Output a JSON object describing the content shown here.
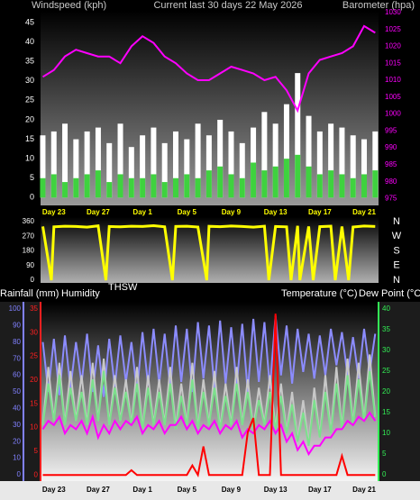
{
  "chart_data": [
    {
      "type": "combo",
      "title": "Current last 30 days 22 May 2026",
      "y_label": "Windspeed (kph)",
      "y2_label": "Barometer (hpa)",
      "x": [
        -1,
        0,
        1,
        2,
        3,
        4,
        5,
        6,
        7,
        8,
        9,
        10,
        11,
        12,
        13,
        14,
        15,
        16,
        17,
        18,
        19,
        20,
        21,
        22,
        23,
        24,
        25,
        26,
        27,
        28,
        29
      ],
      "xlim": [
        -1.2,
        29.3
      ],
      "xticks": [
        {
          "value": 0,
          "label": "Day 23"
        },
        {
          "value": 4,
          "label": "Day 27"
        },
        {
          "value": 8,
          "label": "Day 1"
        },
        {
          "value": 12,
          "label": "Day 5"
        },
        {
          "value": 16,
          "label": "Day 9"
        },
        {
          "value": 20,
          "label": "Day 13"
        },
        {
          "value": 24,
          "label": "Day 17"
        },
        {
          "value": 28,
          "label": "Day 21"
        }
      ],
      "ylim": [
        -2,
        48
      ],
      "yticks": [
        0,
        5,
        10,
        15,
        20,
        25,
        30,
        35,
        40,
        45
      ],
      "y2lim": [
        973,
        1030.5
      ],
      "y2ticks": [
        975,
        980,
        985,
        990,
        995,
        1000,
        1005,
        1010,
        1015,
        1020,
        1025,
        1030
      ],
      "series": [
        {
          "style": "bar",
          "color": "#ffffff",
          "values": [
            16,
            17,
            19,
            15,
            17,
            18,
            14,
            19,
            13,
            16,
            18,
            14,
            17,
            15,
            19,
            16,
            20,
            17,
            14,
            18,
            22,
            19,
            24,
            32,
            21,
            17,
            19,
            18,
            16,
            15,
            17
          ]
        },
        {
          "style": "bar",
          "color": "#3fd23f",
          "values": [
            5,
            6,
            4,
            5,
            6,
            7,
            4,
            6,
            5,
            5,
            6,
            4,
            5,
            6,
            5,
            7,
            8,
            6,
            5,
            9,
            7,
            8,
            10,
            11,
            8,
            6,
            7,
            6,
            5,
            6,
            7
          ]
        },
        {
          "style": "line",
          "axis": "y2",
          "color": "#ff00ff",
          "values": [
            1011,
            1013,
            1017,
            1019,
            1018,
            1017,
            1017,
            1015,
            1020,
            1023,
            1021,
            1017,
            1015,
            1012,
            1010,
            1010,
            1012,
            1014,
            1013,
            1012,
            1010,
            1011,
            1007,
            1001,
            1012,
            1016,
            1017,
            1018,
            1020,
            1026,
            1024
          ]
        }
      ]
    },
    {
      "type": "direction",
      "x": [
        -1,
        -0.22,
        0,
        1,
        2,
        3,
        4,
        4.7,
        5,
        6,
        7,
        8,
        9,
        10,
        10.7,
        11,
        12,
        13,
        13.8,
        14,
        15,
        16,
        17,
        18,
        19,
        19.4,
        20,
        21,
        21.4,
        22,
        22.2,
        23,
        23.4,
        24,
        25,
        25.4,
        26,
        26.6,
        27,
        28,
        29
      ],
      "xlim": [
        -1.2,
        29.3
      ],
      "ylim": [
        0,
        360
      ],
      "yticks": [
        0,
        90,
        180,
        270,
        360
      ],
      "y2ticks": [
        {
          "value": 360,
          "label": "N"
        },
        {
          "value": 270,
          "label": "W"
        },
        {
          "value": 180,
          "label": "S"
        },
        {
          "value": 90,
          "label": "E"
        },
        {
          "value": 0,
          "label": "N"
        }
      ],
      "series": [
        {
          "color": "#ffff00",
          "values": [
            330,
            0,
            328,
            332,
            330,
            326,
            334,
            0,
            330,
            328,
            332,
            330,
            335,
            328,
            0,
            330,
            332,
            327,
            0,
            331,
            329,
            333,
            330,
            326,
            332,
            0,
            330,
            328,
            0,
            334,
            0,
            330,
            0,
            329,
            332,
            0,
            330,
            0,
            327,
            333,
            330
          ]
        }
      ]
    },
    {
      "type": "multiline",
      "x": [
        -1,
        -0.5,
        0,
        0.5,
        1,
        1.5,
        2,
        2.5,
        3,
        3.5,
        4,
        4.5,
        5,
        5.5,
        6,
        6.5,
        7,
        7.5,
        8,
        8.5,
        9,
        9.5,
        10,
        10.5,
        11,
        11.5,
        12,
        12.5,
        13,
        13.5,
        14,
        14.5,
        15,
        15.5,
        16,
        16.5,
        17,
        17.5,
        18,
        18.5,
        19,
        19.5,
        20,
        20.5,
        21,
        21.5,
        22,
        22.5,
        23,
        23.5,
        24,
        24.5,
        25,
        25.5,
        26,
        26.5,
        27,
        27.5,
        28,
        28.5,
        29
      ],
      "xlim": [
        -1.2,
        29.3
      ],
      "xticks": [
        {
          "value": 0,
          "label": "Day 23"
        },
        {
          "value": 4,
          "label": "Day 27"
        },
        {
          "value": 8,
          "label": "Day 1"
        },
        {
          "value": 12,
          "label": "Day 5"
        },
        {
          "value": 16,
          "label": "Day 9"
        },
        {
          "value": 20,
          "label": "Day 13"
        },
        {
          "value": 24,
          "label": "Day 17"
        },
        {
          "value": 28,
          "label": "Day 21"
        }
      ],
      "ylim": [
        -3.8,
        104.3
      ],
      "yticks": [
        0,
        10,
        20,
        30,
        40,
        50,
        60,
        70,
        80,
        90,
        100
      ],
      "y_color": "#8080ff",
      "y2lim": [
        -1.5,
        41.7
      ],
      "y2ticks": [
        0,
        5,
        10,
        15,
        20,
        25,
        30,
        35,
        40
      ],
      "y2_color": "#33ee55",
      "y3lim": [
        -1.3,
        36.5
      ],
      "y3ticks": [
        0,
        5,
        10,
        15,
        20,
        25,
        30,
        35
      ],
      "y3_color": "#ff2020",
      "series": [
        {
          "name": "Humidity",
          "axis": "y",
          "color": "#8c8cff",
          "values": [
            80,
            50,
            82,
            48,
            84,
            52,
            80,
            55,
            85,
            50,
            78,
            47,
            82,
            53,
            84,
            56,
            80,
            50,
            86,
            54,
            88,
            55,
            85,
            52,
            90,
            56,
            88,
            50,
            92,
            58,
            90,
            52,
            93,
            55,
            89,
            54,
            91,
            50,
            94,
            56,
            92,
            52,
            96,
            60,
            90,
            55,
            88,
            62,
            85,
            58,
            84,
            60,
            88,
            66,
            86,
            60,
            83,
            58,
            88,
            62,
            85
          ]
        },
        {
          "name": "THSW",
          "axis": "y2",
          "color": "#c8c8c8",
          "values": [
            12,
            26,
            13,
            27,
            12,
            25,
            13,
            24,
            12,
            27,
            13,
            28,
            12,
            24,
            13,
            23,
            12,
            26,
            11,
            24,
            12,
            23,
            12,
            26,
            11,
            22,
            12,
            27,
            11,
            23,
            12,
            25,
            11,
            22,
            12,
            26,
            12,
            23,
            11,
            21,
            12,
            24,
            11,
            22,
            10,
            20,
            8,
            18,
            7,
            21,
            9,
            24,
            10,
            26,
            11,
            28,
            12,
            27,
            13,
            29,
            14
          ]
        },
        {
          "name": "Temperature (°C)",
          "axis": "y2",
          "color": "#7ce08c",
          "values": [
            12,
            22,
            13,
            24,
            12,
            21,
            13,
            20,
            12,
            23,
            13,
            25,
            12,
            21,
            13,
            20,
            12,
            22,
            11,
            21,
            12,
            20,
            12,
            22,
            11,
            19,
            12,
            23,
            11,
            20,
            12,
            21,
            11,
            19,
            12,
            22,
            12,
            20,
            11,
            18,
            12,
            20,
            11,
            19,
            10,
            17,
            8,
            15,
            7,
            18,
            9,
            20,
            10,
            22,
            11,
            24,
            12,
            23,
            13,
            25,
            14
          ]
        },
        {
          "name": "Dew Point (°C)",
          "axis": "y2",
          "color": "#ff00ff",
          "values": [
            11,
            13,
            12,
            14,
            10,
            12,
            11,
            13,
            10,
            14,
            9,
            12,
            10,
            13,
            11,
            13,
            12,
            14,
            10,
            12,
            11,
            13,
            10,
            12,
            12,
            14,
            11,
            13,
            10,
            12,
            11,
            13,
            10,
            12,
            11,
            13,
            9,
            11,
            10,
            12,
            11,
            13,
            10,
            12,
            8,
            10,
            6,
            8,
            5,
            7,
            7,
            9,
            9,
            11,
            11,
            13,
            12,
            14,
            13,
            15,
            13
          ]
        },
        {
          "name": "Rainfall (mm)",
          "axis": "y3",
          "color": "#ff0000",
          "values": [
            0,
            0,
            0,
            0,
            0,
            0,
            0,
            0,
            0,
            0,
            0,
            0,
            0,
            0,
            0,
            0,
            1,
            0,
            0,
            0,
            0,
            0,
            0,
            0,
            0,
            0,
            0,
            2,
            0,
            6,
            0,
            0,
            0,
            0,
            0,
            0,
            0,
            9,
            12,
            0,
            0,
            0,
            34,
            0,
            0,
            0,
            0,
            0,
            0,
            0,
            0,
            0,
            0,
            0,
            4,
            0,
            0,
            0,
            0,
            0,
            0
          ]
        }
      ]
    }
  ]
}
